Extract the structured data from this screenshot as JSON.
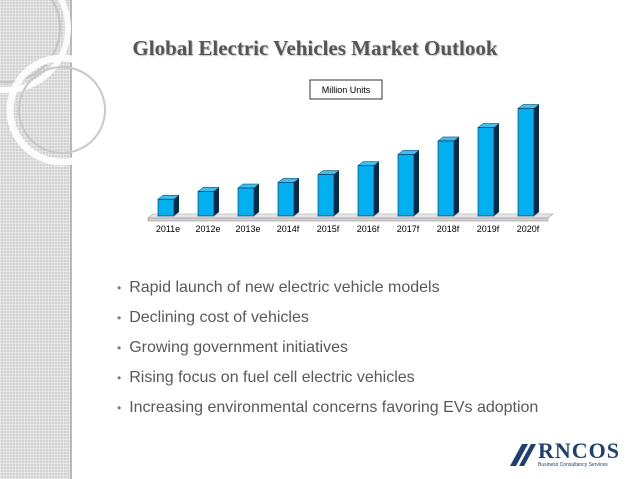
{
  "slide": {
    "title": "Global Electric Vehicles Market Outlook",
    "bullets": [
      "Rapid launch of new electric vehicle models",
      "Declining cost of vehicles",
      "Growing government initiatives",
      "Rising focus on fuel cell electric vehicles",
      "Increasing environmental concerns favoring EVs adoption"
    ]
  },
  "chart_data": {
    "type": "bar",
    "title": "",
    "legend": "Million Units",
    "legend_position": "top-center",
    "xlabel": "",
    "ylabel": "",
    "categories": [
      "2011e",
      "2012e",
      "2013e",
      "2014f",
      "2015f",
      "2016f",
      "2017f",
      "2018f",
      "2019f",
      "2020f"
    ],
    "values": [
      1.5,
      2.2,
      2.5,
      3.0,
      3.7,
      4.5,
      5.5,
      6.7,
      7.9,
      9.6
    ],
    "ylim": [
      0,
      10
    ],
    "grid": false,
    "colors": {
      "bar": "#00b0f0",
      "bar_top": "#33c4f5",
      "bar_side": "#0a2a4a",
      "floor": "#e6e6e6"
    }
  },
  "logo": {
    "name": "RNCOS",
    "tagline": "Business Consultancy Services",
    "colors": {
      "name": "#1f3f74",
      "mark": "#1f3f74"
    }
  }
}
